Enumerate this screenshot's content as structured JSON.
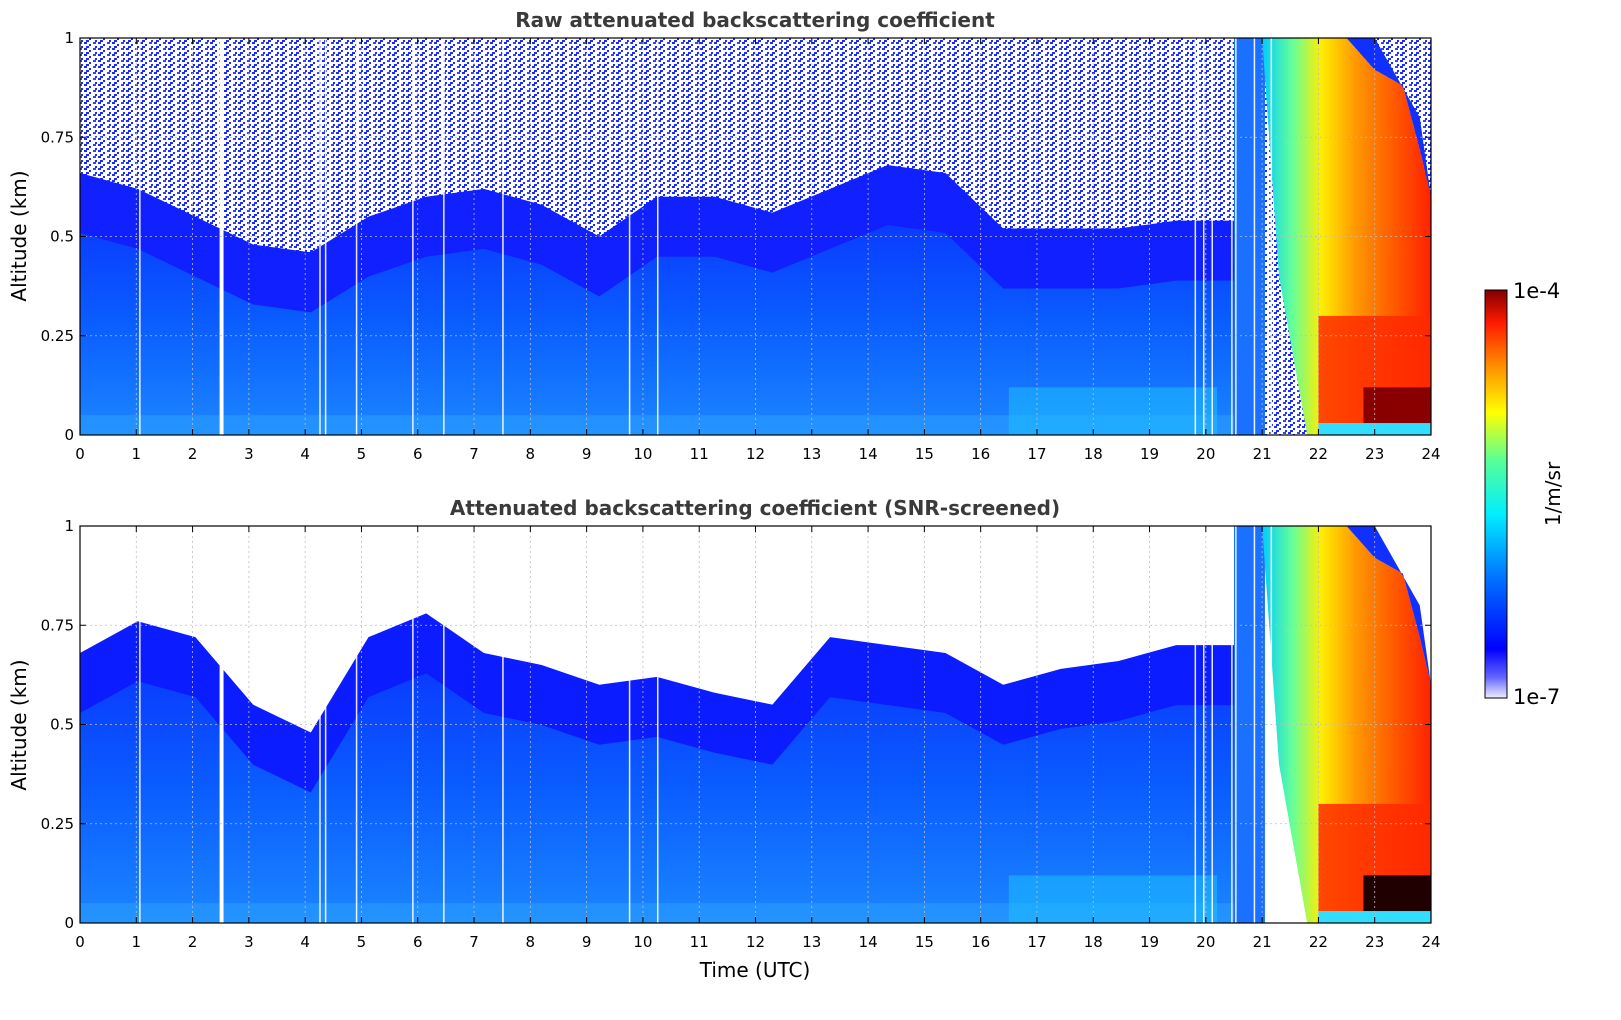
{
  "chart_data": [
    {
      "type": "heatmap",
      "title": "Raw attenuated backscattering coefficient",
      "xlabel": "",
      "ylabel": "Altitude (km)",
      "xlim": [
        0,
        24
      ],
      "ylim": [
        0,
        1
      ],
      "xticks": [
        "0",
        "1",
        "2",
        "3",
        "4",
        "5",
        "6",
        "7",
        "8",
        "9",
        "10",
        "11",
        "12",
        "13",
        "14",
        "15",
        "16",
        "17",
        "18",
        "19",
        "20",
        "21",
        "22",
        "23",
        "24"
      ],
      "yticks": [
        "0",
        "0.25",
        "0.5",
        "0.75",
        "1"
      ],
      "grid": true,
      "noise_top_km": [
        0.66,
        0.62,
        0.55,
        0.48,
        0.46,
        0.55,
        0.6,
        0.62,
        0.58,
        0.5,
        0.6,
        0.6,
        0.56,
        0.62,
        0.68,
        0.66,
        0.52,
        0.52,
        0.52,
        0.54,
        0.54
      ],
      "gap_hours": [
        2.48,
        2.55
      ],
      "aerosol_plume": {
        "hours": [
          20.5,
          24
        ],
        "top_km": 1.0,
        "surface_peak_hours": [
          22.0,
          24.0
        ]
      }
    },
    {
      "type": "heatmap",
      "title": "Attenuated backscattering coefficient (SNR-screened)",
      "xlabel": "Time (UTC)",
      "ylabel": "Altitude (km)",
      "xlim": [
        0,
        24
      ],
      "ylim": [
        0,
        1
      ],
      "xticks": [
        "0",
        "1",
        "2",
        "3",
        "4",
        "5",
        "6",
        "7",
        "8",
        "9",
        "10",
        "11",
        "12",
        "13",
        "14",
        "15",
        "16",
        "17",
        "18",
        "19",
        "20",
        "21",
        "22",
        "23",
        "24"
      ],
      "yticks": [
        "0",
        "0.25",
        "0.5",
        "0.75",
        "1"
      ],
      "grid": true,
      "signal_top_km": [
        0.68,
        0.76,
        0.72,
        0.55,
        0.48,
        0.72,
        0.78,
        0.68,
        0.65,
        0.6,
        0.62,
        0.58,
        0.55,
        0.72,
        0.7,
        0.68,
        0.6,
        0.64,
        0.66,
        0.7,
        0.7
      ],
      "gap_hours": [
        2.48,
        2.55
      ],
      "aerosol_plume": {
        "hours": [
          20.5,
          24
        ],
        "top_km": 1.0,
        "surface_peak_hours": [
          22.0,
          24.0
        ]
      }
    }
  ],
  "colorbar": {
    "label": "1/m/sr",
    "max_label": "1e-4",
    "min_label": "1e-7",
    "scale": "log",
    "range": [
      1e-07,
      0.0001
    ],
    "colormap": [
      "#ffffff",
      "#0000ff",
      "#00aaff",
      "#00ffff",
      "#ffff00",
      "#ff8000",
      "#ff0000",
      "#800000"
    ]
  }
}
